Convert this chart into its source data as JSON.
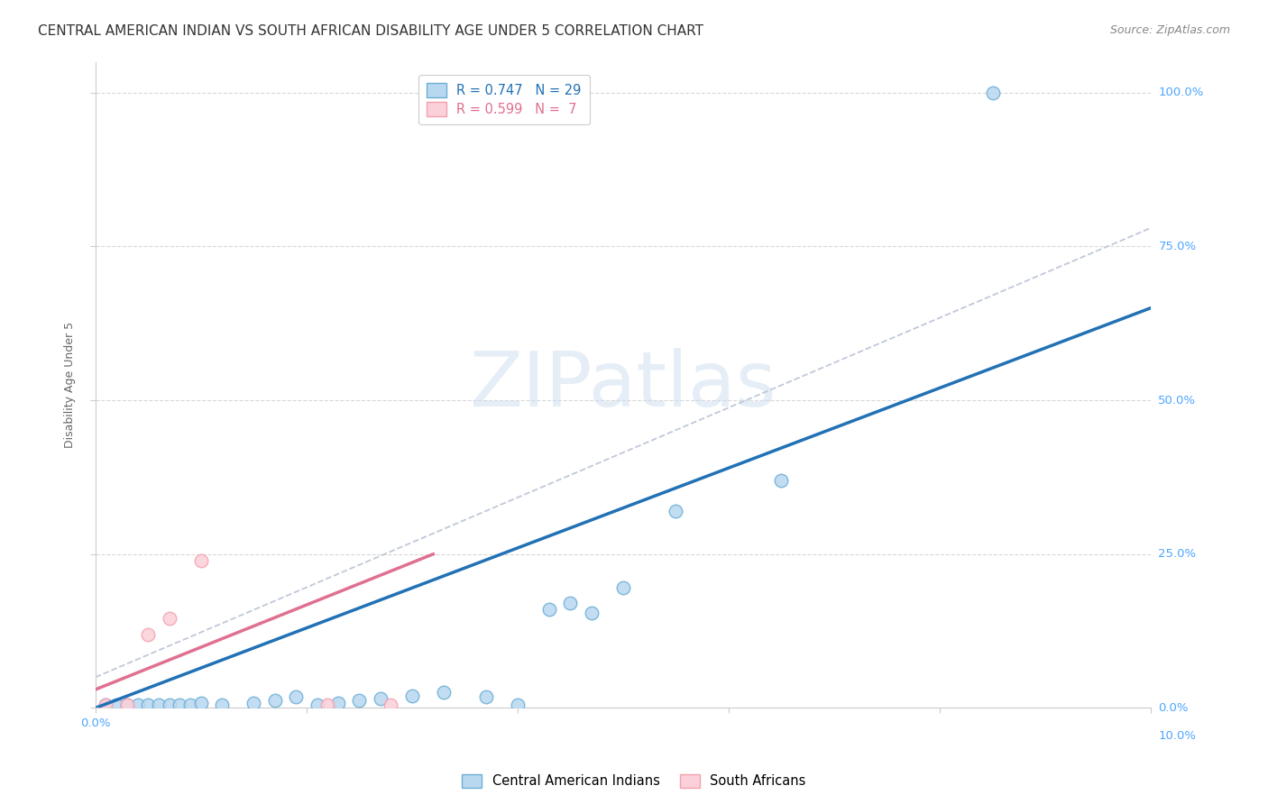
{
  "title": "CENTRAL AMERICAN INDIAN VS SOUTH AFRICAN DISABILITY AGE UNDER 5 CORRELATION CHART",
  "source": "Source: ZipAtlas.com",
  "ylabel": "Disability Age Under 5",
  "watermark": "ZIPatlas",
  "legend_blue": {
    "R": 0.747,
    "N": 29,
    "label": "Central American Indians"
  },
  "legend_pink": {
    "R": 0.599,
    "N": 7,
    "label": "South Africans"
  },
  "xlim": [
    0.0,
    0.1
  ],
  "ylim": [
    0.0,
    1.05
  ],
  "y_ticks": [
    0.0,
    0.25,
    0.5,
    0.75,
    1.0
  ],
  "y_tick_labels": [
    "0.0%",
    "25.0%",
    "50.0%",
    "75.0%",
    "100.0%"
  ],
  "blue_scatter": [
    [
      0.001,
      0.005
    ],
    [
      0.002,
      0.005
    ],
    [
      0.003,
      0.005
    ],
    [
      0.004,
      0.005
    ],
    [
      0.005,
      0.005
    ],
    [
      0.006,
      0.005
    ],
    [
      0.007,
      0.005
    ],
    [
      0.008,
      0.005
    ],
    [
      0.009,
      0.005
    ],
    [
      0.01,
      0.008
    ],
    [
      0.012,
      0.005
    ],
    [
      0.015,
      0.008
    ],
    [
      0.017,
      0.012
    ],
    [
      0.019,
      0.018
    ],
    [
      0.021,
      0.005
    ],
    [
      0.023,
      0.008
    ],
    [
      0.025,
      0.012
    ],
    [
      0.027,
      0.016
    ],
    [
      0.03,
      0.02
    ],
    [
      0.033,
      0.025
    ],
    [
      0.037,
      0.018
    ],
    [
      0.04,
      0.005
    ],
    [
      0.043,
      0.16
    ],
    [
      0.045,
      0.17
    ],
    [
      0.047,
      0.155
    ],
    [
      0.05,
      0.195
    ],
    [
      0.055,
      0.32
    ],
    [
      0.065,
      0.37
    ],
    [
      0.085,
      1.0
    ]
  ],
  "pink_scatter": [
    [
      0.001,
      0.005
    ],
    [
      0.003,
      0.005
    ],
    [
      0.005,
      0.12
    ],
    [
      0.007,
      0.145
    ],
    [
      0.01,
      0.24
    ],
    [
      0.022,
      0.005
    ],
    [
      0.028,
      0.005
    ]
  ],
  "blue_line_x": [
    0.0,
    0.1
  ],
  "blue_line_y": [
    0.0,
    0.65
  ],
  "pink_line_x": [
    0.0,
    0.032
  ],
  "pink_line_y": [
    0.03,
    0.25
  ],
  "dashed_line_x": [
    0.0,
    0.1
  ],
  "dashed_line_y": [
    0.05,
    0.78
  ],
  "blue_color": "#6baed6",
  "blue_face": "#b8d8f0",
  "pink_color": "#f4a0b0",
  "pink_face": "#fbd0d8",
  "blue_line_color": "#2171b5",
  "pink_line_color": "#e07090",
  "dashed_color": "#c0c8d8",
  "grid_color": "#d8d8d8",
  "bg_color": "#ffffff",
  "title_color": "#333333",
  "right_label_color": "#4da6ff",
  "x_left_label": "0.0%",
  "x_right_label": "10.0%",
  "marker_size": 110,
  "title_fontsize": 11,
  "label_fontsize": 9,
  "tick_fontsize": 9.5,
  "source_fontsize": 9
}
